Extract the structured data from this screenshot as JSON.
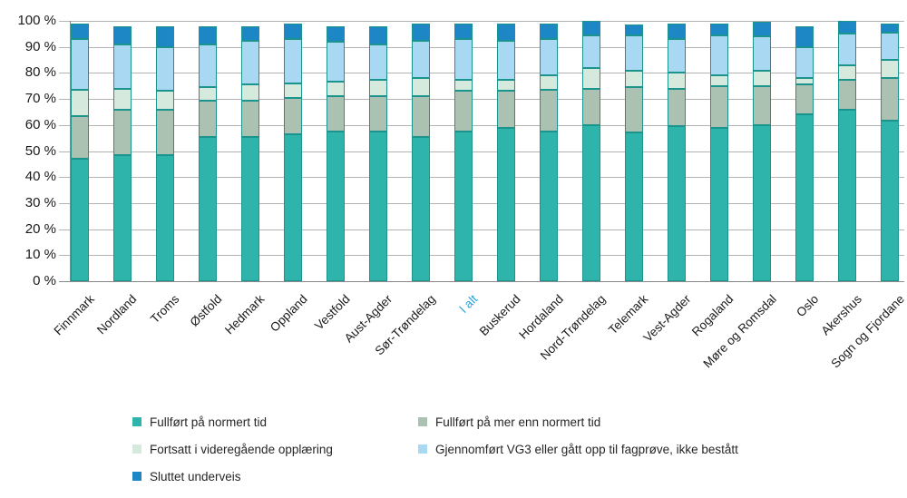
{
  "chart_data": {
    "type": "bar",
    "stacked": true,
    "unit": "%",
    "ylim": [
      0,
      100
    ],
    "grid": true,
    "legend_position": "bottom",
    "y_ticks": [
      "0 %",
      "10 %",
      "20 %",
      "30 %",
      "40 %",
      "50 %",
      "60 %",
      "70 %",
      "80 %",
      "90 %",
      "100 %"
    ],
    "categories": [
      "Finnmark",
      "Nordland",
      "Troms",
      "Østfold",
      "Hedmark",
      "Oppland",
      "Vestfold",
      "Aust-Agder",
      "Sør-Trøndelag",
      "I alt",
      "Buskerud",
      "Hordaland",
      "Nord-Trøndelag",
      "Telemark",
      "Vest-Agder",
      "Rogaland",
      "Møre og Romsdal",
      "Oslo",
      "Akershus",
      "Sogn og Fjordane"
    ],
    "highlight_category": "I alt",
    "series": [
      {
        "name": "Fullført på normert tid",
        "color": "#2fb4ab",
        "values": [
          47,
          48.5,
          48.5,
          55.5,
          55.5,
          56.5,
          57.5,
          57.5,
          55.5,
          57.5,
          59,
          57.5,
          60,
          57,
          59.5,
          59,
          60,
          64,
          66,
          61.5
        ]
      },
      {
        "name": "Fullført på mer enn normert tid",
        "color": "#abc2b2",
        "values": [
          16.5,
          17.5,
          17.5,
          14,
          14,
          14,
          13.5,
          13.5,
          15.5,
          15.5,
          14,
          16,
          14,
          17.5,
          14.5,
          16,
          15,
          11.5,
          11.5,
          16.5
        ]
      },
      {
        "name": "Fortsatt i videregående opplæring",
        "color": "#d6e9dd",
        "values": [
          10,
          8,
          7,
          5,
          6,
          5.5,
          5.5,
          6.5,
          7,
          4.5,
          4.5,
          5.5,
          8,
          6.5,
          6,
          4,
          6,
          2.5,
          5.5,
          7
        ]
      },
      {
        "name": "Gjennomført VG3 eller gått opp til fagprøve, ikke bestått",
        "color": "#a8d8f2",
        "values": [
          19.5,
          17,
          17,
          16.5,
          17,
          17,
          15.5,
          13.5,
          14.5,
          15.5,
          15,
          14,
          12.5,
          13.5,
          13,
          15.5,
          13,
          12,
          12,
          10.5
        ]
      },
      {
        "name": "Sluttet underveis",
        "color": "#1d87c5",
        "values": [
          6,
          7,
          8,
          7,
          5.5,
          6,
          6,
          7,
          6.5,
          6,
          6.5,
          6,
          5.5,
          4,
          6,
          4.5,
          5.5,
          8,
          5,
          3.5
        ]
      }
    ]
  },
  "colors": {
    "segment_border": "#1a948c",
    "gridline": "#b3b3b3",
    "axis": "#8a8a8a",
    "tick_label": "#1a1a1a",
    "highlight_label": "#29a3dc"
  },
  "legend": {
    "column1_series": [
      0,
      2,
      4
    ],
    "column2_series": [
      1,
      3
    ]
  }
}
